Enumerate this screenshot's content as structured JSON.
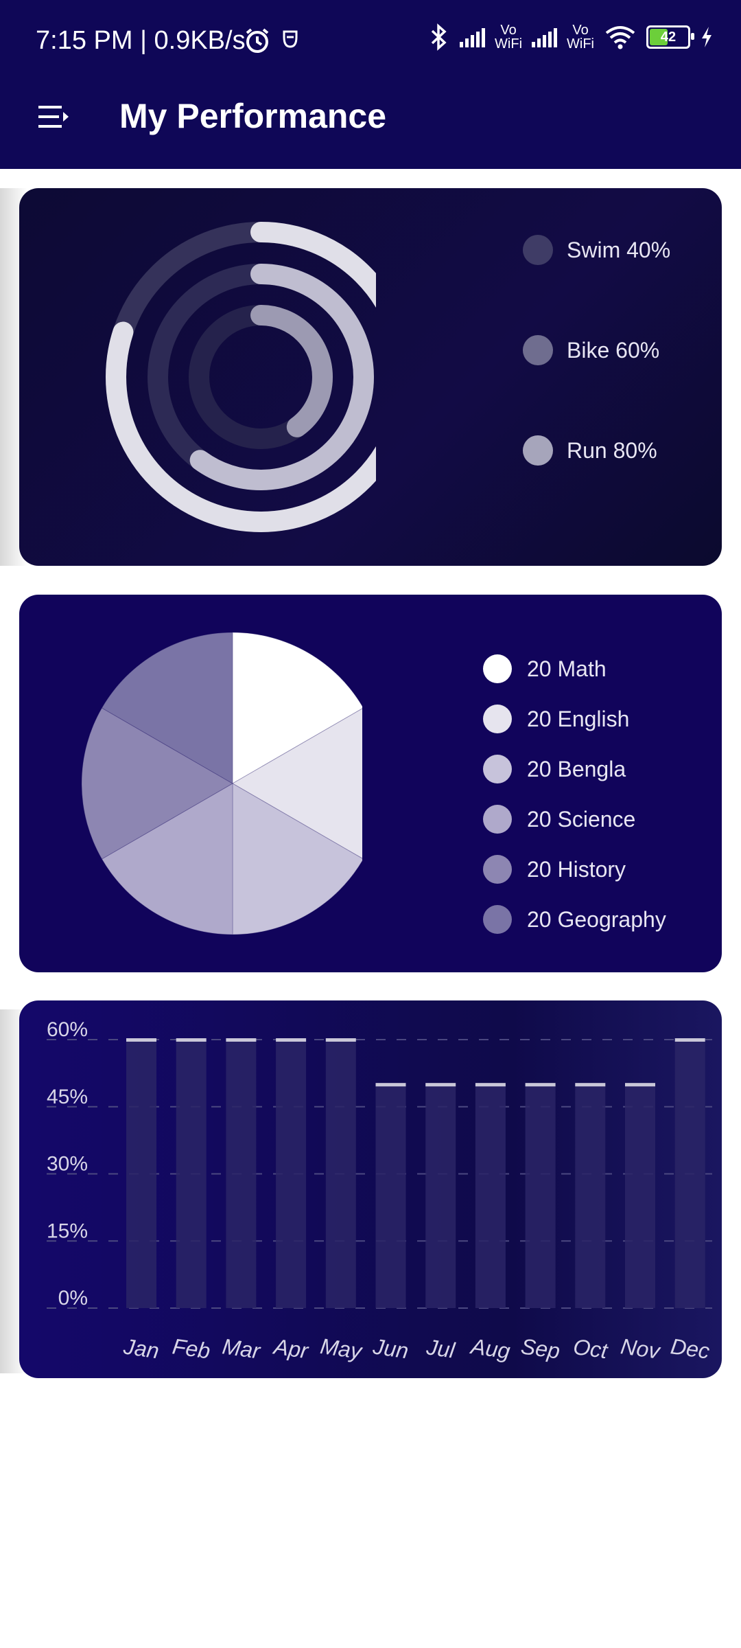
{
  "status_bar": {
    "time": "7:15 PM | 0.9KB/s",
    "battery": "42",
    "vowifi_1": "Vo\nWiFi",
    "vowifi_2": "Vo\nWiFi"
  },
  "app_bar": {
    "title": "My Performance",
    "menu_icon": "menu-icon"
  },
  "rings": {
    "items": [
      {
        "label": "Swim 40%",
        "value": 40,
        "color": "#3f3c66"
      },
      {
        "label": "Bike 60%",
        "value": 60,
        "color": "#6f6d8f"
      },
      {
        "label": "Run 80%",
        "value": 80,
        "color": "#a6a5bb"
      }
    ]
  },
  "pie": {
    "items": [
      {
        "label": "20 Math",
        "value": 20,
        "color": "#ffffff"
      },
      {
        "label": "20 English",
        "value": 20,
        "color": "#e6e4ee"
      },
      {
        "label": "20 Bengla",
        "value": 20,
        "color": "#c7c3db"
      },
      {
        "label": "20 Science",
        "value": 20,
        "color": "#afa9cb"
      },
      {
        "label": "20 History",
        "value": 20,
        "color": "#8d86b2"
      },
      {
        "label": "20 Geography",
        "value": 20,
        "color": "#7a74a6"
      }
    ]
  },
  "chart_data": {
    "type": "bar",
    "categories": [
      "Jan",
      "Feb",
      "Mar",
      "Apr",
      "May",
      "Jun",
      "Jul",
      "Aug",
      "Sep",
      "Oct",
      "Nov",
      "Dec"
    ],
    "values": [
      60,
      60,
      60,
      60,
      60,
      50,
      50,
      50,
      50,
      50,
      50,
      60
    ],
    "ylim": [
      0,
      60
    ],
    "yticks": [
      "0%",
      "15%",
      "30%",
      "45%",
      "60%"
    ],
    "grid": true
  }
}
